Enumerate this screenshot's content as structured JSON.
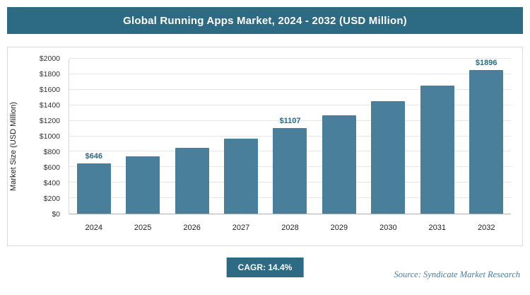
{
  "title": "Global Running Apps Market, 2024 - 2032 (USD Million)",
  "footer": {
    "cagr_label": "CAGR: 14.4%",
    "source": "Source: Syndicate Market Research"
  },
  "colors": {
    "accent_teal": "#2d6a83",
    "bar_color": "#4a7f9c",
    "gridline": "#e4e6e8"
  },
  "chart_data": {
    "type": "bar",
    "title": "Global Running Apps Market, 2024 - 2032 (USD Million)",
    "categories": [
      "2024",
      "2025",
      "2026",
      "2027",
      "2028",
      "2029",
      "2030",
      "2031",
      "2032"
    ],
    "values": [
      646,
      739,
      845,
      967,
      1107,
      1266,
      1448,
      1657,
      1896
    ],
    "data_labels": [
      "$646",
      null,
      null,
      null,
      "$1107",
      null,
      null,
      null,
      "$1896"
    ],
    "xlabel": "",
    "ylabel": "Market Size (USD Million)",
    "ylim": [
      0,
      2000
    ],
    "ytick_step": 200,
    "tick_prefix": "$",
    "grid": true,
    "legend": "none",
    "bar_color": "#4a7f9c"
  }
}
